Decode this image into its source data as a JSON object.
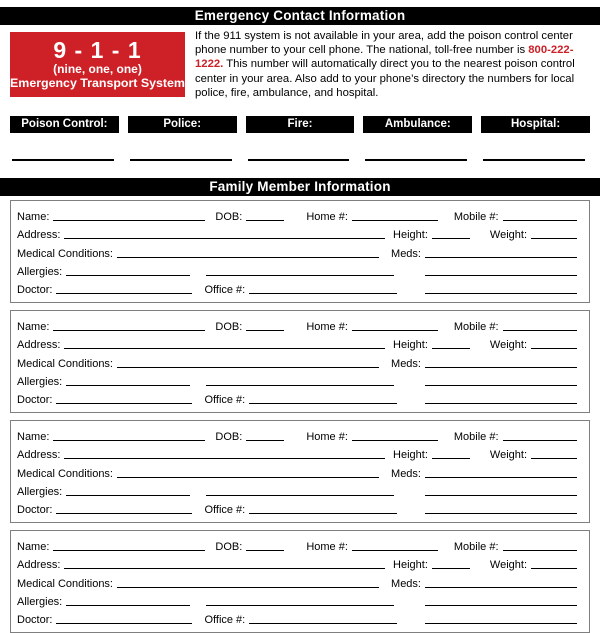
{
  "header_title": "Emergency Contact Information",
  "emergency_911": {
    "number": "9 - 1 - 1",
    "words": "(nine, one, one)",
    "system": "Emergency Transport System",
    "bg_color": "#CE2127"
  },
  "instructions": {
    "before": "If the 911 system is not available in your area, add the poison control center phone number to your cell phone. The national, toll-free number is ",
    "phone": "800-222-1222.",
    "after": " This number will automatically direct you to the nearest poison control center in your area. Also add to your phone’s directory the numbers for local police, fire, ambulance, and hospital.",
    "phone_color": "#CC2027"
  },
  "emergency_contacts": [
    {
      "label": "Poison Control:"
    },
    {
      "label": "Police:"
    },
    {
      "label": "Fire:"
    },
    {
      "label": "Ambulance:"
    },
    {
      "label": "Hospital:"
    }
  ],
  "family_section_title": "Family Member Information",
  "family_member_count": 4,
  "member_fields": {
    "name": "Name:",
    "dob": "DOB:",
    "home": "Home #:",
    "mobile": "Mobile #:",
    "address": "Address:",
    "height": "Height:",
    "weight": "Weight:",
    "medical_conditions": "Medical Conditions:",
    "meds": "Meds:",
    "allergies": "Allergies:",
    "doctor": "Doctor:",
    "office": "Office #:"
  }
}
